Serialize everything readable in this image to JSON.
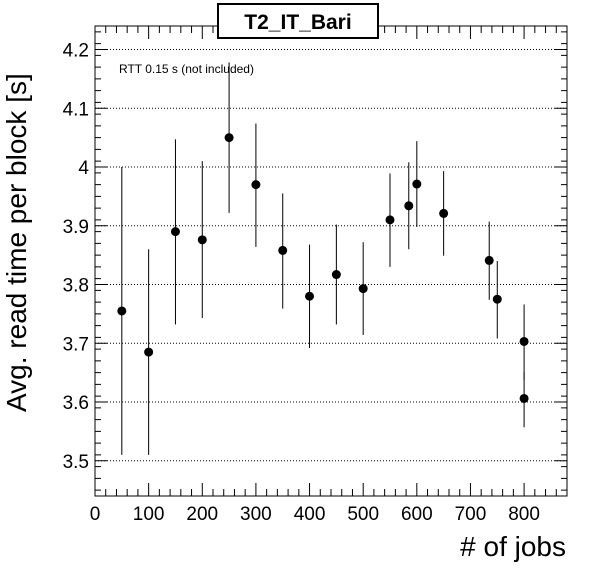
{
  "chart_data": {
    "type": "scatter",
    "title": "T2_IT_Bari",
    "xlabel": "# of jobs",
    "ylabel": "Avg. read time per block [s]",
    "annotation": "RTT 0.15 s (not included)",
    "xlim": [
      0,
      880
    ],
    "ylim": [
      3.44,
      4.24
    ],
    "xticks": [
      0,
      100,
      200,
      300,
      400,
      500,
      600,
      700,
      800
    ],
    "yticks": [
      3.5,
      3.6,
      3.7,
      3.8,
      3.9,
      4.0,
      4.1,
      4.2
    ],
    "ytick_labels": [
      "3.5",
      "3.6",
      "3.7",
      "3.8",
      "3.9",
      "4",
      "4.1",
      "4.2"
    ],
    "grid": "horizontal dotted",
    "marker_color": "#000000",
    "points": [
      {
        "x": 50,
        "y": 3.755,
        "err_low": 3.51,
        "err_high": 4.0
      },
      {
        "x": 100,
        "y": 3.685,
        "err_low": 3.51,
        "err_high": 3.86
      },
      {
        "x": 150,
        "y": 3.89,
        "err_low": 3.732,
        "err_high": 4.047
      },
      {
        "x": 200,
        "y": 3.876,
        "err_low": 3.743,
        "err_high": 4.01
      },
      {
        "x": 250,
        "y": 4.05,
        "err_low": 3.922,
        "err_high": 4.178
      },
      {
        "x": 300,
        "y": 3.97,
        "err_low": 3.864,
        "err_high": 4.074
      },
      {
        "x": 350,
        "y": 3.858,
        "err_low": 3.759,
        "err_high": 3.955
      },
      {
        "x": 400,
        "y": 3.78,
        "err_low": 3.692,
        "err_high": 3.868
      },
      {
        "x": 450,
        "y": 3.817,
        "err_low": 3.732,
        "err_high": 3.902
      },
      {
        "x": 500,
        "y": 3.793,
        "err_low": 3.714,
        "err_high": 3.872
      },
      {
        "x": 550,
        "y": 3.91,
        "err_low": 3.83,
        "err_high": 3.989
      },
      {
        "x": 585,
        "y": 3.934,
        "err_low": 3.86,
        "err_high": 4.008
      },
      {
        "x": 600,
        "y": 3.971,
        "err_low": 3.898,
        "err_high": 4.044
      },
      {
        "x": 650,
        "y": 3.921,
        "err_low": 3.849,
        "err_high": 3.993
      },
      {
        "x": 735,
        "y": 3.841,
        "err_low": 3.774,
        "err_high": 3.907
      },
      {
        "x": 750,
        "y": 3.775,
        "err_low": 3.708,
        "err_high": 3.84
      },
      {
        "x": 800,
        "y": 3.703,
        "err_low": 3.638,
        "err_high": 3.766
      },
      {
        "x": 800,
        "y": 3.606,
        "err_low": 3.557,
        "err_high": 3.651
      }
    ]
  }
}
